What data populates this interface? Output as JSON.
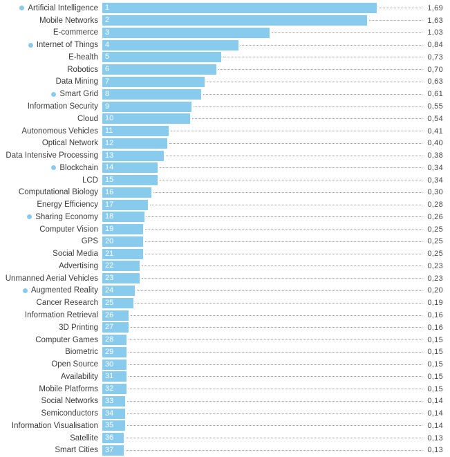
{
  "accent_color": "#89cbec",
  "chart_data": {
    "type": "bar",
    "orientation": "horizontal",
    "title": "",
    "xlabel": "",
    "ylabel": "",
    "xlim": [
      0,
      1.8
    ],
    "grid": false,
    "legend": "none",
    "decimal_separator": ",",
    "items": [
      {
        "rank": 1,
        "label": "Artificial Intelligence",
        "value": 1.69,
        "display_value": "1,69",
        "bullet": true
      },
      {
        "rank": 2,
        "label": "Mobile Networks",
        "value": 1.63,
        "display_value": "1,63",
        "bullet": false
      },
      {
        "rank": 3,
        "label": "E-commerce",
        "value": 1.03,
        "display_value": "1,03",
        "bullet": false
      },
      {
        "rank": 4,
        "label": "Internet of Things",
        "value": 0.84,
        "display_value": "0,84",
        "bullet": true
      },
      {
        "rank": 5,
        "label": "E-health",
        "value": 0.73,
        "display_value": "0,73",
        "bullet": false
      },
      {
        "rank": 6,
        "label": "Robotics",
        "value": 0.7,
        "display_value": "0,70",
        "bullet": false
      },
      {
        "rank": 7,
        "label": "Data Mining",
        "value": 0.63,
        "display_value": "0,63",
        "bullet": false
      },
      {
        "rank": 8,
        "label": "Smart Grid",
        "value": 0.61,
        "display_value": "0,61",
        "bullet": true
      },
      {
        "rank": 9,
        "label": "Information Security",
        "value": 0.55,
        "display_value": "0,55",
        "bullet": false
      },
      {
        "rank": 10,
        "label": "Cloud",
        "value": 0.54,
        "display_value": "0,54",
        "bullet": false
      },
      {
        "rank": 11,
        "label": "Autonomous Vehicles",
        "value": 0.41,
        "display_value": "0,41",
        "bullet": false
      },
      {
        "rank": 12,
        "label": "Optical Network",
        "value": 0.4,
        "display_value": "0,40",
        "bullet": false
      },
      {
        "rank": 13,
        "label": "Data Intensive Processing",
        "value": 0.38,
        "display_value": "0,38",
        "bullet": false
      },
      {
        "rank": 14,
        "label": "Blockchain",
        "value": 0.34,
        "display_value": "0,34",
        "bullet": true
      },
      {
        "rank": 15,
        "label": "LCD",
        "value": 0.34,
        "display_value": "0,34",
        "bullet": false
      },
      {
        "rank": 16,
        "label": "Computational Biology",
        "value": 0.3,
        "display_value": "0,30",
        "bullet": false
      },
      {
        "rank": 17,
        "label": "Energy Efficiency",
        "value": 0.28,
        "display_value": "0,28",
        "bullet": false
      },
      {
        "rank": 18,
        "label": "Sharing Economy",
        "value": 0.26,
        "display_value": "0,26",
        "bullet": true
      },
      {
        "rank": 19,
        "label": "Computer Vision",
        "value": 0.25,
        "display_value": "0,25",
        "bullet": false
      },
      {
        "rank": 20,
        "label": "GPS",
        "value": 0.25,
        "display_value": "0,25",
        "bullet": false
      },
      {
        "rank": 21,
        "label": "Social Media",
        "value": 0.25,
        "display_value": "0,25",
        "bullet": false
      },
      {
        "rank": 22,
        "label": "Advertising",
        "value": 0.23,
        "display_value": "0,23",
        "bullet": false
      },
      {
        "rank": 23,
        "label": "Unmanned Aerial Vehicles",
        "value": 0.23,
        "display_value": "0,23",
        "bullet": false
      },
      {
        "rank": 24,
        "label": "Augmented Reality",
        "value": 0.2,
        "display_value": "0,20",
        "bullet": true
      },
      {
        "rank": 25,
        "label": "Cancer Research",
        "value": 0.19,
        "display_value": "0,19",
        "bullet": false
      },
      {
        "rank": 26,
        "label": "Information Retrieval",
        "value": 0.16,
        "display_value": "0,16",
        "bullet": false
      },
      {
        "rank": 27,
        "label": "3D Printing",
        "value": 0.16,
        "display_value": "0,16",
        "bullet": false
      },
      {
        "rank": 28,
        "label": "Computer Games",
        "value": 0.15,
        "display_value": "0,15",
        "bullet": false
      },
      {
        "rank": 29,
        "label": "Biometric",
        "value": 0.15,
        "display_value": "0,15",
        "bullet": false
      },
      {
        "rank": 30,
        "label": "Open Source",
        "value": 0.15,
        "display_value": "0,15",
        "bullet": false
      },
      {
        "rank": 31,
        "label": "Availability",
        "value": 0.15,
        "display_value": "0,15",
        "bullet": false
      },
      {
        "rank": 32,
        "label": "Mobile Platforms",
        "value": 0.15,
        "display_value": "0,15",
        "bullet": false
      },
      {
        "rank": 33,
        "label": "Social Networks",
        "value": 0.14,
        "display_value": "0,14",
        "bullet": false
      },
      {
        "rank": 34,
        "label": "Semiconductors",
        "value": 0.14,
        "display_value": "0,14",
        "bullet": false
      },
      {
        "rank": 35,
        "label": "Information Visualisation",
        "value": 0.14,
        "display_value": "0,14",
        "bullet": false
      },
      {
        "rank": 36,
        "label": "Satellite",
        "value": 0.13,
        "display_value": "0,13",
        "bullet": false
      },
      {
        "rank": 37,
        "label": "Smart Cities",
        "value": 0.13,
        "display_value": "0,13",
        "bullet": false
      }
    ]
  }
}
